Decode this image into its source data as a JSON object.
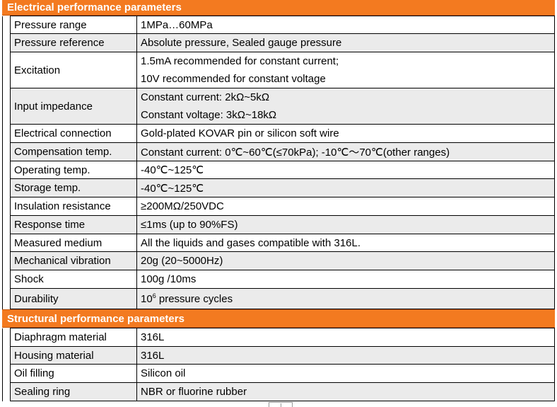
{
  "sections": [
    {
      "title": "Electrical performance parameters",
      "rows": [
        {
          "label": "Pressure range",
          "lines": [
            "1MPa…60MPa"
          ]
        },
        {
          "label": "Pressure reference",
          "lines": [
            "Absolute pressure, Sealed gauge pressure"
          ]
        },
        {
          "label": "Excitation",
          "lines": [
            "1.5mA recommended for constant current;",
            "10V recommended for constant voltage"
          ]
        },
        {
          "label": "Input impedance",
          "lines": [
            "Constant current: 2kΩ~5kΩ",
            "Constant voltage: 3kΩ~18kΩ"
          ]
        },
        {
          "label": "Electrical connection",
          "lines": [
            "Gold-plated KOVAR pin or silicon soft wire"
          ]
        },
        {
          "label": "Compensation temp.",
          "lines": [
            "Constant current: 0℃~60℃(≤70kPa); -10℃～70℃(other ranges)"
          ]
        },
        {
          "label": "Operating temp.",
          "lines": [
            "-40℃~125℃"
          ]
        },
        {
          "label": "Storage temp.",
          "lines": [
            "-40℃~125℃"
          ]
        },
        {
          "label": "Insulation resistance",
          "lines": [
            "≥200MΩ/250VDC"
          ]
        },
        {
          "label": "Response time",
          "lines": [
            "≤1ms (up to 90%FS)"
          ]
        },
        {
          "label": "Measured medium",
          "lines": [
            "All the liquids and gases compatible with 316L."
          ]
        },
        {
          "label": "Mechanical vibration",
          "lines": [
            "20g (20~5000Hz)"
          ]
        },
        {
          "label": "Shock",
          "lines": [
            "100g /10ms"
          ]
        },
        {
          "label": "Durability",
          "durability": {
            "base": "10",
            "exponent": "6",
            "text": " pressure cycles"
          }
        }
      ]
    },
    {
      "title": "Structural performance parameters",
      "rows": [
        {
          "label": "Diaphragm material",
          "lines": [
            "316L"
          ]
        },
        {
          "label": "Housing material",
          "lines": [
            "316L"
          ]
        },
        {
          "label": "Oil filling",
          "lines": [
            "Silicon oil"
          ]
        },
        {
          "label": "Sealing ring",
          "lines": [
            "NBR or fluorine rubber"
          ]
        }
      ]
    }
  ],
  "colors": {
    "header_bg": "#f37a20",
    "header_text": "#ffffff",
    "row_alt_bg": "#ebebeb"
  }
}
